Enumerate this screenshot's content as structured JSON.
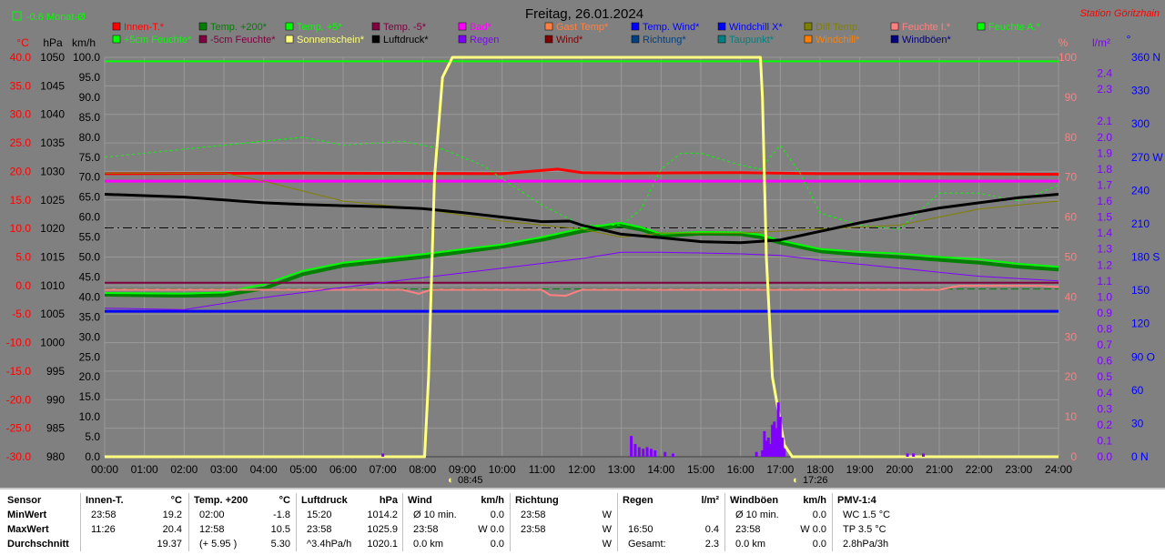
{
  "chart_data": {
    "type": "line",
    "title": "Freitag, 26.01.2024",
    "station": "Station Göritzhain",
    "monat_label": "-0.6 Monat-Ø",
    "sunrise": "08:45",
    "sunset": "17:26",
    "x_ticks": [
      "00:00",
      "01:00",
      "02:00",
      "03:00",
      "04:00",
      "05:00",
      "06:00",
      "07:00",
      "08:00",
      "09:00",
      "10:00",
      "11:00",
      "12:00",
      "13:00",
      "14:00",
      "15:00",
      "16:00",
      "17:00",
      "18:00",
      "19:00",
      "20:00",
      "21:00",
      "22:00",
      "23:00",
      "24:00"
    ],
    "y_axes": {
      "celsius": {
        "unit": "°C",
        "color": "#ff0000",
        "ticks": [
          "40.0",
          "35.0",
          "30.0",
          "25.0",
          "20.0",
          "15.0",
          "10.0",
          "5.0",
          "0.0",
          "-5.0",
          "-10.0",
          "-15.0",
          "-20.0",
          "-25.0",
          "-30.0"
        ]
      },
      "hpa": {
        "unit": "hPa",
        "color": "#000000",
        "ticks": [
          "1050",
          "1045",
          "1040",
          "1035",
          "1030",
          "1025",
          "1020",
          "1015",
          "1010",
          "1005",
          "1000",
          "995",
          "990",
          "985",
          "980"
        ]
      },
      "kmh": {
        "unit": "km/h",
        "color": "#000000",
        "ticks": [
          "100.0",
          "95.0",
          "90.0",
          "85.0",
          "80.0",
          "75.0",
          "70.0",
          "65.0",
          "60.0",
          "55.0",
          "50.0",
          "45.0",
          "40.0",
          "35.0",
          "30.0",
          "25.0",
          "20.0",
          "15.0",
          "10.0",
          "5.0",
          "0.0"
        ]
      },
      "percent": {
        "unit": "%",
        "color": "#ff8080",
        "ticks": [
          "100",
          "90",
          "80",
          "70",
          "60",
          "50",
          "40",
          "30",
          "20",
          "10",
          "0"
        ]
      },
      "rain": {
        "unit": "l/m²",
        "color": "#8000ff",
        "ticks": [
          "2.4",
          "2.3",
          "2.1",
          "2.0",
          "1.9",
          "1.8",
          "1.7",
          "1.6",
          "1.5",
          "1.4",
          "1.3",
          "1.2",
          "1.1",
          "1.0",
          "0.9",
          "0.8",
          "0.7",
          "0.6",
          "0.5",
          "0.4",
          "0.3",
          "0.2",
          "0.1",
          "0.0"
        ]
      },
      "direction": {
        "unit": "°",
        "color": "#0000ff",
        "ticks": [
          "360 N",
          "330",
          "300",
          "270 W",
          "240",
          "210",
          "180 S",
          "150",
          "120",
          "90 O",
          "60",
          "30",
          "0 N"
        ]
      }
    },
    "legend": [
      {
        "label": "Innen-T.*",
        "color": "#ff0000"
      },
      {
        "label": "Temp. +200*",
        "color": "#008000"
      },
      {
        "label": "Temp. +5*",
        "color": "#00ff00"
      },
      {
        "label": "Temp. -5*",
        "color": "#800040"
      },
      {
        "label": "Bad*",
        "color": "#ff00ff"
      },
      {
        "label": "Gast Temp*",
        "color": "#ff8040"
      },
      {
        "label": "Temp. Wind*",
        "color": "#0000ff"
      },
      {
        "label": "Windchill X*",
        "color": "#0000ff"
      },
      {
        "label": "Diff Temp.",
        "color": "#808000"
      },
      {
        "label": "Feuchte I.*",
        "color": "#ff8080"
      },
      {
        "label": "Feuchte A.*",
        "color": "#00ff00"
      },
      {
        "label": "+5cm Feuchte*",
        "color": "#00ff00"
      },
      {
        "label": "-5cm Feuchte*",
        "color": "#800040"
      },
      {
        "label": "Sonnenschein*",
        "color": "#ffff80"
      },
      {
        "label": "Luftdruck*",
        "color": "#000000"
      },
      {
        "label": "Regen",
        "color": "#8000ff"
      },
      {
        "label": "Wind*",
        "color": "#800000"
      },
      {
        "label": "Richtung*",
        "color": "#004080"
      },
      {
        "label": "Taupunkt*",
        "color": "#008080"
      },
      {
        "label": "Windchill*",
        "color": "#ff8000"
      },
      {
        "label": "Windböen*",
        "color": "#000080"
      }
    ],
    "series": [
      {
        "name": "Innen-T.*",
        "axis": "celsius",
        "color": "#ff0000",
        "width": 3,
        "x": [
          0,
          5,
          10,
          11.4,
          12,
          13,
          16,
          18,
          20,
          24
        ],
        "y": [
          19.6,
          19.7,
          19.6,
          20.4,
          19.8,
          19.7,
          19.8,
          19.6,
          19.6,
          19.5
        ]
      },
      {
        "name": "Temp. +200*",
        "axis": "celsius",
        "color": "#008000",
        "width": 4,
        "x": [
          0,
          2,
          3,
          4,
          5,
          6,
          8,
          10,
          11,
          12,
          12.97,
          13.5,
          14,
          15,
          16,
          16.5,
          17,
          18,
          19,
          20,
          21,
          22,
          23,
          24
        ],
        "y": [
          -1.6,
          -1.8,
          -1.7,
          -0.5,
          2.0,
          3.5,
          5.0,
          6.8,
          8.0,
          9.5,
          10.5,
          9.8,
          8.7,
          9.1,
          9.0,
          8.5,
          7.5,
          6.0,
          5.4,
          5.0,
          4.5,
          4.0,
          3.3,
          2.8
        ]
      },
      {
        "name": "Temp. +5*",
        "axis": "celsius",
        "color": "#00ff00",
        "width": 2,
        "x": [
          0,
          2,
          3,
          4,
          5,
          6,
          8,
          10,
          11,
          12,
          12.97,
          13.5,
          14,
          15,
          16,
          16.5,
          17,
          18,
          19,
          20,
          21,
          22,
          23,
          24
        ],
        "y": [
          -1.3,
          -1.4,
          -1.2,
          0.2,
          2.6,
          4.0,
          5.5,
          7.2,
          8.5,
          10.0,
          11.0,
          10.2,
          9.1,
          9.4,
          9.3,
          8.9,
          7.9,
          6.4,
          5.9,
          5.6,
          5.0,
          4.6,
          3.8,
          3.3
        ]
      },
      {
        "name": "Temp. -5*",
        "axis": "celsius",
        "color": "#800040",
        "width": 2,
        "x": [
          0,
          24
        ],
        "y": [
          0.5,
          0.5
        ]
      },
      {
        "name": "Temp. Wind*",
        "axis": "celsius",
        "color": "#0000ff",
        "width": 3,
        "x": [
          0,
          24
        ],
        "y": [
          -4.5,
          -4.5
        ]
      },
      {
        "name": "Feuchte I.*",
        "axis": "percent",
        "color": "#ff8080",
        "width": 2,
        "x": [
          0,
          7.5,
          7.9,
          8.2,
          11,
          11.2,
          11.6,
          12,
          21,
          21.5,
          23.5,
          24
        ],
        "y": [
          41.8,
          41.8,
          40.8,
          41.8,
          41.8,
          40.5,
          40.3,
          41.8,
          41.8,
          42.8,
          42.8,
          42.5
        ]
      },
      {
        "name": "Bad*",
        "axis": "percent",
        "color": "#ff00ff",
        "width": 3,
        "x": [
          0,
          24
        ],
        "y": [
          69,
          69
        ]
      },
      {
        "name": "Feuchte A.*",
        "axis": "percent",
        "color": "#00ff00",
        "width": 1,
        "dash": "3,3",
        "x": [
          0,
          2,
          4,
          5,
          6,
          7.5,
          8.5,
          9.5,
          11,
          12,
          13,
          13.5,
          14,
          14.5,
          15,
          16,
          16.5,
          17,
          17.5,
          18,
          19,
          20,
          21,
          22,
          23,
          24
        ],
        "y": [
          75,
          77,
          79,
          80,
          78,
          79,
          77,
          73,
          63,
          58,
          58,
          62,
          72,
          76,
          76,
          73,
          72,
          78,
          71,
          61,
          58,
          57,
          66,
          66,
          64,
          68
        ]
      },
      {
        "name": "Diff Temp.",
        "axis": "percent",
        "color": "#808000",
        "width": 1,
        "x": [
          0,
          3,
          4,
          6,
          8,
          10,
          12,
          13,
          14,
          16,
          18,
          20,
          22,
          24
        ],
        "y": [
          71,
          71,
          69,
          64,
          62,
          59,
          57,
          55,
          56,
          56,
          57,
          58,
          62,
          64
        ]
      },
      {
        "name": "Regen",
        "axis": "rain",
        "color": "#8000ff",
        "width": 1,
        "x": [
          0,
          2,
          3.5,
          6,
          8,
          10,
          12,
          13,
          14,
          16,
          17,
          18,
          20,
          22,
          24
        ],
        "y": [
          0.93,
          0.92,
          0.98,
          1.06,
          1.12,
          1.18,
          1.24,
          1.28,
          1.28,
          1.27,
          1.26,
          1.23,
          1.18,
          1.13,
          1.1
        ]
      },
      {
        "name": "Luftdruck*",
        "axis": "hpa",
        "color": "#000000",
        "width": 3,
        "x": [
          0,
          2,
          4,
          5,
          7,
          8,
          9,
          10,
          11,
          11.7,
          12,
          13,
          14,
          15,
          16,
          17,
          18,
          19,
          20,
          21,
          22,
          23,
          24
        ],
        "y": [
          1026,
          1025.5,
          1024.5,
          1024.2,
          1023.8,
          1023.5,
          1022.8,
          1022.0,
          1021.2,
          1021.3,
          1020.6,
          1019.0,
          1018.4,
          1017.7,
          1017.5,
          1018.0,
          1019.5,
          1021.0,
          1022.3,
          1023.6,
          1024.5,
          1025.4,
          1026.0
        ]
      },
      {
        "name": "Sonnenschein*",
        "axis": "kmh",
        "color": "#ffff80",
        "width": 3,
        "x": [
          0,
          8.05,
          8.15,
          8.3,
          8.5,
          8.75,
          9,
          16.5,
          16.55,
          16.65,
          16.8,
          17.1,
          17.3,
          17.45,
          24
        ],
        "y": [
          0,
          0,
          20,
          70,
          95,
          100,
          100,
          100,
          90,
          50,
          20,
          3,
          0,
          0,
          0
        ]
      }
    ],
    "rain_bars": {
      "x": [
        7.0,
        13.25,
        13.35,
        13.45,
        13.55,
        13.65,
        13.75,
        13.85,
        14.1,
        14.3,
        16.4,
        16.55,
        16.6,
        16.65,
        16.7,
        16.75,
        16.8,
        16.85,
        16.9,
        16.95,
        17.0,
        17.05,
        17.1,
        20.2,
        20.35,
        20.6
      ],
      "y": [
        0.02,
        0.13,
        0.08,
        0.06,
        0.05,
        0.06,
        0.05,
        0.04,
        0.03,
        0.02,
        0.03,
        0.04,
        0.16,
        0.1,
        0.12,
        0.08,
        0.2,
        0.22,
        0.18,
        0.34,
        0.25,
        0.12,
        0.05,
        0.02,
        0.02,
        0.02
      ]
    },
    "reference_lines": [
      {
        "axis": "hpa",
        "value": 1020.1,
        "color": "#000000",
        "dash": "10,4,2,4"
      },
      {
        "axis": "celsius",
        "value": -0.6,
        "color": "#008000",
        "dash": "8,4"
      },
      {
        "axis": "kmh",
        "value": 99,
        "color": "#00ff00",
        "dash": ""
      }
    ]
  },
  "stats": {
    "row_labels": [
      "Sensor",
      "MinWert",
      "MaxWert",
      "Durchschnitt"
    ],
    "blocks": [
      {
        "title": "Innen-T.",
        "unit": "°C",
        "rows": [
          [
            "23:58",
            "19.2"
          ],
          [
            "11:26",
            "20.4"
          ],
          [
            "",
            "19.37"
          ]
        ]
      },
      {
        "title": "Temp. +200",
        "unit": "°C",
        "rows": [
          [
            "02:00",
            "-1.8"
          ],
          [
            "12:58",
            "10.5"
          ],
          [
            "(+ 5.95 )",
            "5.30"
          ]
        ]
      },
      {
        "title": "Luftdruck",
        "unit": "hPa",
        "rows": [
          [
            "15:20",
            "1014.2"
          ],
          [
            "23:58",
            "1025.9"
          ],
          [
            "^3.4hPa/h",
            "1020.1"
          ]
        ]
      },
      {
        "title": "Wind",
        "unit": "km/h",
        "rows": [
          [
            "Ø 10 min.",
            "0.0"
          ],
          [
            "23:58",
            "W 0.0"
          ],
          [
            "0.0 km",
            "0.0"
          ]
        ]
      },
      {
        "title": "Richtung",
        "unit": "",
        "rows": [
          [
            "23:58",
            "W"
          ],
          [
            "23:58",
            "W"
          ],
          [
            "",
            "W"
          ]
        ]
      },
      {
        "title": "Regen",
        "unit": "l/m²",
        "rows": [
          [
            "",
            ""
          ],
          [
            "16:50",
            "0.4"
          ],
          [
            "Gesamt:",
            "2.3"
          ]
        ]
      },
      {
        "title": "Windböen",
        "unit": "km/h",
        "rows": [
          [
            "Ø 10 min.",
            "0.0"
          ],
          [
            "23:58",
            "W 0.0"
          ],
          [
            "0.0 km",
            "0.0"
          ]
        ]
      },
      {
        "title": "PMV-1:4",
        "unit": "",
        "rows": [
          [
            "WC 1.5 °C",
            ""
          ],
          [
            "TP 3.5 °C",
            ""
          ],
          [
            "2.8hPa/3h",
            ""
          ]
        ]
      }
    ]
  }
}
